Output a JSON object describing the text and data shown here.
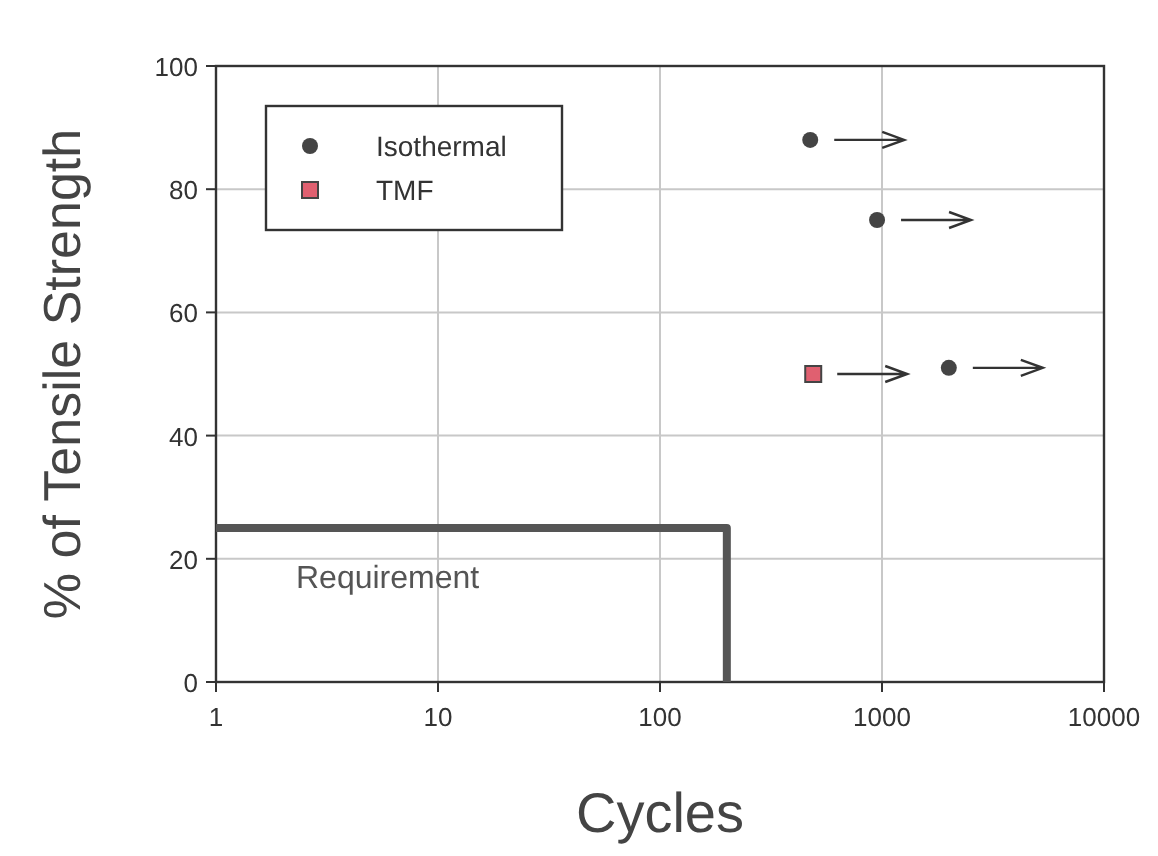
{
  "chart_data": {
    "type": "scatter",
    "xlabel": "Cycles",
    "ylabel": "% of Tensile Strength",
    "log": "x",
    "xlim": [
      1,
      10000
    ],
    "xticks": [
      1,
      10,
      100,
      1000,
      10000
    ],
    "ylim": [
      0,
      100
    ],
    "yticks": [
      0,
      20,
      40,
      60,
      80,
      100
    ],
    "grid": true,
    "legend": "top left",
    "series": [
      {
        "name": "Isothermal",
        "color": "#444444",
        "marker": "circle",
        "x": [
          475,
          950,
          2000
        ],
        "values": [
          88,
          75,
          51
        ]
      },
      {
        "name": "TMF",
        "color": "#e06070",
        "marker": "square",
        "x": [
          490
        ],
        "values": [
          50
        ]
      },
      {
        "name": "Requirement",
        "type": "line",
        "color": "#555555",
        "line_style": "solid",
        "marker": "none",
        "x": [
          1,
          200,
          200
        ],
        "values": [
          25,
          25,
          0
        ]
      }
    ]
  }
}
